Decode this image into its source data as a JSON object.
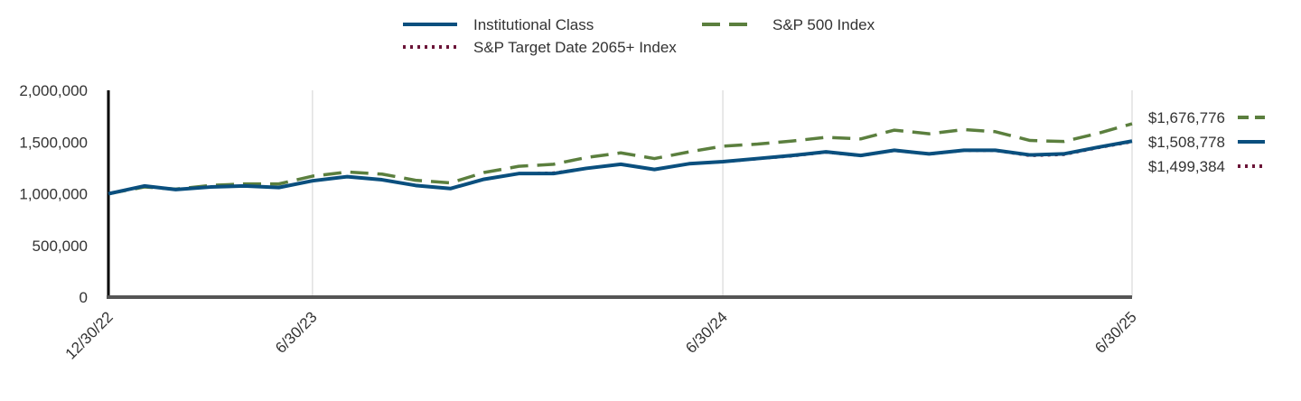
{
  "chart_data": {
    "type": "line",
    "title": "",
    "xlabel": "",
    "ylabel": "",
    "ylim": [
      0,
      2000000
    ],
    "yticks": [
      0,
      500000,
      1000000,
      1500000,
      2000000
    ],
    "ytick_labels": [
      "0",
      "500,000",
      "1,000,000",
      "1,500,000",
      "2,000,000"
    ],
    "xlim": [
      "2022-12-30",
      "2025-06-30"
    ],
    "xticks": [
      {
        "date": "2022-12-30",
        "label": "12/30/22"
      },
      {
        "date": "2023-06-30",
        "label": "6/30/23"
      },
      {
        "date": "2024-06-30",
        "label": "6/30/24"
      },
      {
        "date": "2025-06-30",
        "label": "6/30/25"
      }
    ],
    "grid": {
      "vertical": true,
      "horizontal": false
    },
    "legend_position": "top-center",
    "x": [
      "2022-12-30",
      "2023-01-31",
      "2023-02-28",
      "2023-03-31",
      "2023-04-30",
      "2023-05-31",
      "2023-06-30",
      "2023-07-31",
      "2023-08-31",
      "2023-09-30",
      "2023-10-31",
      "2023-11-30",
      "2023-12-31",
      "2024-01-31",
      "2024-02-29",
      "2024-03-31",
      "2024-04-30",
      "2024-05-31",
      "2024-06-30",
      "2024-07-31",
      "2024-08-31",
      "2024-09-30",
      "2024-10-31",
      "2024-11-30",
      "2024-12-31",
      "2025-01-31",
      "2025-02-28",
      "2025-03-31",
      "2025-04-30",
      "2025-05-31",
      "2025-06-30"
    ],
    "series": [
      {
        "name": "Institutional Class",
        "color": "#0a4f7e",
        "dash": "solid",
        "end_label": "$1,508,778",
        "values": [
          1000000,
          1075000,
          1040000,
          1065000,
          1075000,
          1060000,
          1125000,
          1165000,
          1135000,
          1080000,
          1050000,
          1140000,
          1195000,
          1195000,
          1245000,
          1285000,
          1235000,
          1290000,
          1310000,
          1340000,
          1370000,
          1405000,
          1370000,
          1420000,
          1385000,
          1420000,
          1420000,
          1375000,
          1385000,
          1450000,
          1508778
        ]
      },
      {
        "name": "S&P 500 Index",
        "color": "#5b7f3e",
        "dash": "dashed",
        "end_label": "$1,676,776",
        "values": [
          1000000,
          1065000,
          1045000,
          1080000,
          1095000,
          1095000,
          1170000,
          1210000,
          1190000,
          1130000,
          1105000,
          1205000,
          1265000,
          1285000,
          1350000,
          1395000,
          1340000,
          1405000,
          1460000,
          1480000,
          1510000,
          1545000,
          1530000,
          1615000,
          1580000,
          1620000,
          1600000,
          1515000,
          1505000,
          1585000,
          1676776
        ]
      },
      {
        "name": "S&P Target Date 2065+ Index",
        "color": "#6b1538",
        "dash": "dotted",
        "end_label": "$1,499,384",
        "values": [
          1000000,
          1070000,
          1040000,
          1065000,
          1075000,
          1062000,
          1125000,
          1162000,
          1132000,
          1078000,
          1048000,
          1138000,
          1195000,
          1205000,
          1245000,
          1282000,
          1232000,
          1288000,
          1305000,
          1335000,
          1362000,
          1398000,
          1365000,
          1415000,
          1380000,
          1415000,
          1415000,
          1365000,
          1375000,
          1442000,
          1499384
        ]
      }
    ]
  }
}
